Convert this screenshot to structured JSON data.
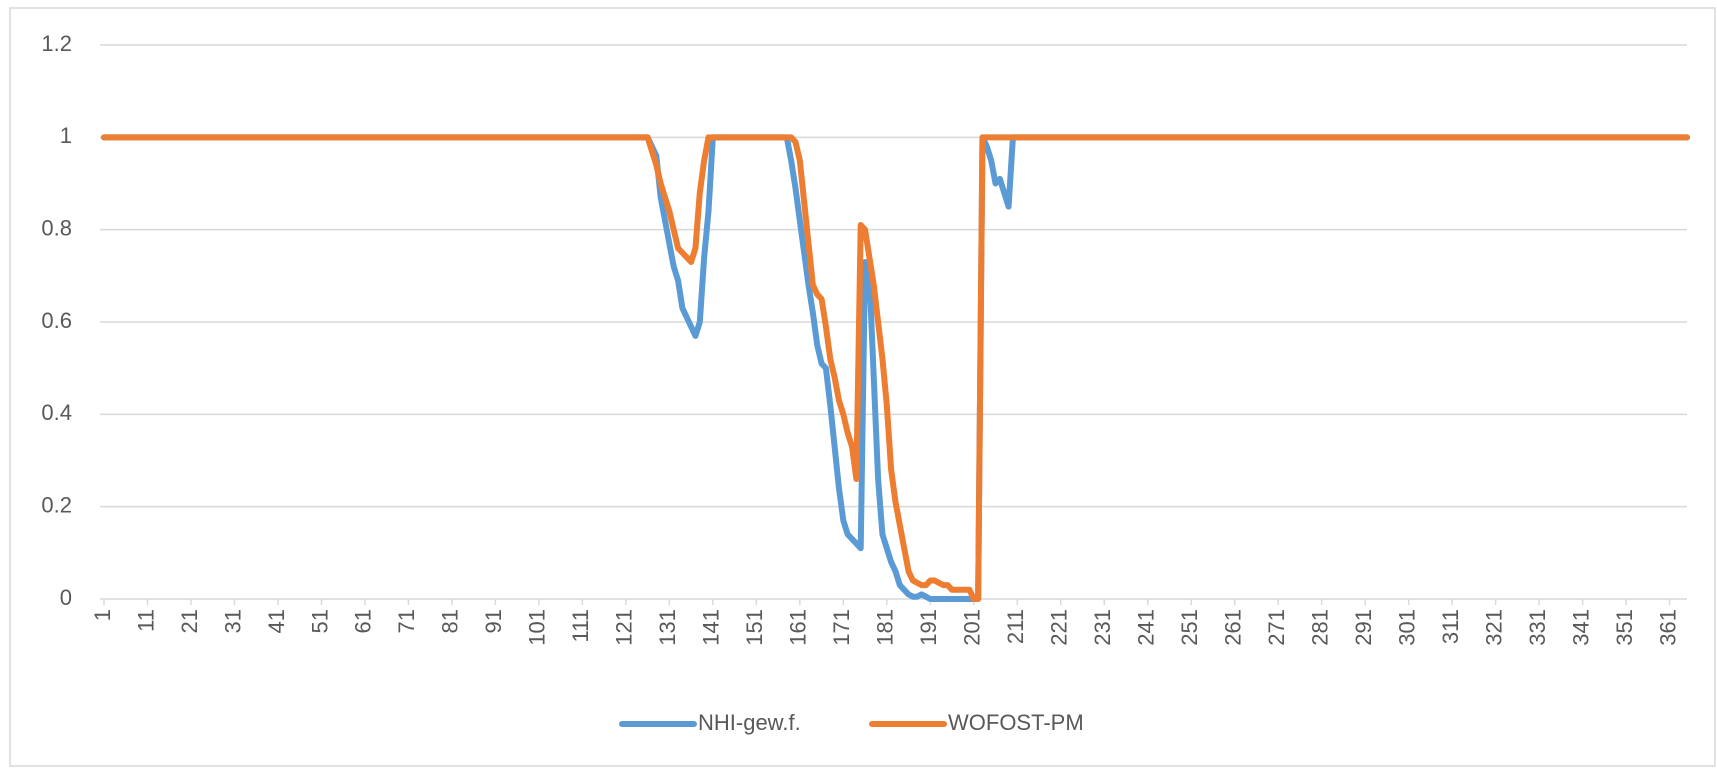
{
  "chart_data": {
    "type": "line",
    "x": [
      1,
      125,
      126,
      127,
      128,
      129,
      130,
      131,
      132,
      133,
      134,
      135,
      136,
      137,
      138,
      139,
      140,
      141,
      142,
      157,
      158,
      159,
      160,
      161,
      162,
      163,
      164,
      165,
      166,
      167,
      168,
      169,
      170,
      171,
      172,
      173,
      174,
      175,
      176,
      177,
      178,
      179,
      180,
      181,
      182,
      183,
      184,
      185,
      186,
      187,
      188,
      189,
      190,
      191,
      192,
      193,
      194,
      195,
      196,
      197,
      198,
      199,
      200,
      201,
      202,
      203,
      204,
      205,
      206,
      207,
      208,
      209,
      210,
      211,
      212,
      365
    ],
    "series": [
      {
        "name": "NHI-gew.f.",
        "color": "#5b9bd5",
        "values": [
          1,
          1,
          1,
          0.98,
          0.96,
          0.87,
          0.82,
          0.77,
          0.72,
          0.69,
          0.63,
          0.61,
          0.59,
          0.57,
          0.6,
          0.74,
          0.84,
          1,
          1,
          1,
          1,
          0.95,
          0.89,
          0.82,
          0.75,
          0.68,
          0.62,
          0.55,
          0.51,
          0.5,
          0.42,
          0.33,
          0.24,
          0.17,
          0.14,
          0.13,
          0.12,
          0.11,
          0.73,
          0.7,
          0.48,
          0.26,
          0.14,
          0.11,
          0.08,
          0.06,
          0.03,
          0.02,
          0.01,
          0.005,
          0.005,
          0.01,
          0.005,
          0,
          0,
          0,
          0,
          0,
          0,
          0,
          0,
          0,
          0,
          0,
          0,
          1,
          0.98,
          0.95,
          0.9,
          0.91,
          0.88,
          0.85,
          1,
          1,
          1,
          1
        ]
      },
      {
        "name": "WOFOST-PM",
        "color": "#ed7d31",
        "values": [
          1,
          1,
          1,
          0.97,
          0.94,
          0.9,
          0.87,
          0.84,
          0.8,
          0.76,
          0.75,
          0.74,
          0.73,
          0.76,
          0.88,
          0.95,
          1,
          1,
          1,
          1,
          1,
          1,
          0.99,
          0.95,
          0.86,
          0.77,
          0.68,
          0.66,
          0.65,
          0.59,
          0.52,
          0.48,
          0.43,
          0.4,
          0.36,
          0.33,
          0.26,
          0.81,
          0.8,
          0.74,
          0.68,
          0.6,
          0.52,
          0.42,
          0.28,
          0.21,
          0.16,
          0.11,
          0.06,
          0.04,
          0.035,
          0.03,
          0.03,
          0.04,
          0.04,
          0.035,
          0.03,
          0.03,
          0.02,
          0.02,
          0.02,
          0.02,
          0.02,
          0,
          0,
          1,
          1,
          1,
          1,
          1,
          1,
          1,
          1,
          1,
          1,
          1
        ]
      }
    ],
    "xlim": [
      1,
      365
    ],
    "xticks": [
      1,
      11,
      21,
      31,
      41,
      51,
      61,
      71,
      81,
      91,
      101,
      111,
      121,
      131,
      141,
      151,
      161,
      171,
      181,
      191,
      201,
      211,
      221,
      231,
      241,
      251,
      261,
      271,
      281,
      291,
      301,
      311,
      321,
      331,
      341,
      351,
      361
    ],
    "ylim": [
      0,
      1.2
    ],
    "yticks": [
      0,
      0.2,
      0.4,
      0.6,
      0.8,
      1,
      1.2
    ],
    "grid": true,
    "legend": "bottom"
  }
}
